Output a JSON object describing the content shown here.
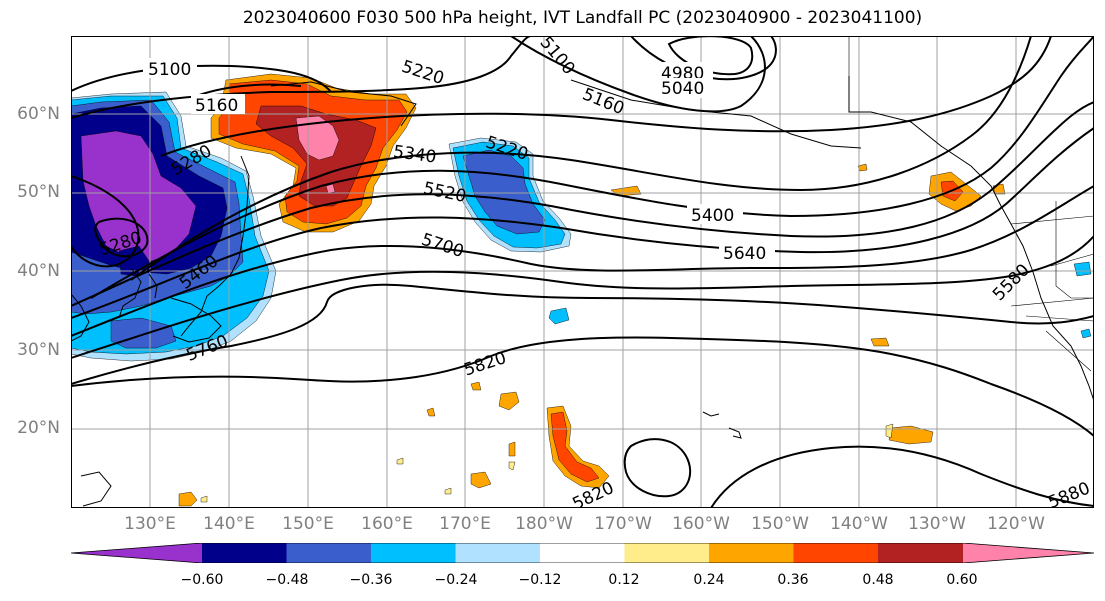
{
  "title": "2023040600 F030 500 hPa height, IVT Landfall PC (2023040900 - 2023041100)",
  "lat_labels": [
    "60°N",
    "50°N",
    "40°N",
    "30°N",
    "20°N"
  ],
  "lon_labels": [
    "130°E",
    "140°E",
    "150°E",
    "160°E",
    "170°E",
    "180°W",
    "170°W",
    "160°W",
    "150°W",
    "140°W",
    "130°W",
    "120°W"
  ],
  "contour_labels": [
    "5100",
    "5160",
    "5220",
    "5100",
    "4980",
    "5040",
    "5160",
    "5280",
    "5340",
    "5220",
    "5520",
    "5400",
    "5280",
    "5460",
    "5700",
    "5640",
    "5580",
    "5760",
    "5820",
    "5820",
    "5880"
  ],
  "colorbar": {
    "ticks": [
      "−0.60",
      "−0.48",
      "−0.36",
      "−0.24",
      "−0.12",
      "0.12",
      "0.24",
      "0.36",
      "0.48",
      "0.60"
    ],
    "colors": [
      "#9932cc",
      "#00008b",
      "#3a5fcd",
      "#00bfff",
      "#b0e2ff",
      "#ffffff",
      "#ffec8b",
      "#ffa500",
      "#ff4500",
      "#b22222",
      "#ff82ab"
    ]
  }
}
